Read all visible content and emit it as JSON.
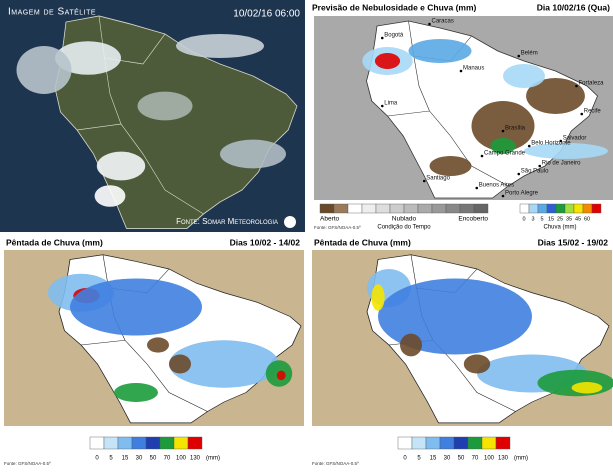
{
  "satellite": {
    "title": "Imagem de Satélite",
    "timestamp": "10/02/16 06:00",
    "source": "Fonte: Somar Meteorologia"
  },
  "forecast": {
    "title": "Previsão de Nebulosidade e Chuva (mm)",
    "date": "Dia 10/02/16 (Qua)",
    "cities": [
      "Bogotá",
      "Caracas",
      "Manaus",
      "Belém",
      "Fortaleza",
      "Lima",
      "Recife",
      "Salvador",
      "Brasília",
      "Belo Horizonte",
      "Rio de Janeiro",
      "São Paulo",
      "Campo Grande",
      "Santiago",
      "Buenos Aires",
      "Porto Alegre"
    ],
    "cloud_legend": {
      "labels": [
        "Aberto",
        "Nublado",
        "Encoberto"
      ],
      "caption": "Condição do Tempo",
      "colors": [
        "#6b4a2a",
        "#9a7a5a",
        "#ffffff",
        "#eeeeee",
        "#dddddd",
        "#cccccc",
        "#bbbbbb",
        "#aaaaaa",
        "#999999",
        "#888888",
        "#777777",
        "#666666"
      ]
    },
    "rain_legend": {
      "ticks": [
        "0",
        "3",
        "5",
        "15",
        "25",
        "35",
        "45",
        "60"
      ],
      "caption": "Chuva (mm)",
      "colors": [
        "#ffffff",
        "#a6d8f5",
        "#5aa9e6",
        "#2f5fd0",
        "#1c9b3c",
        "#9fe03a",
        "#f5e400",
        "#f58a00",
        "#e00000"
      ]
    },
    "source": "Fonte: GFS/NOAA-0.5º"
  },
  "pentads": [
    {
      "title": "Pêntada de Chuva (mm)",
      "dates": "Dias 10/02 - 14/02",
      "source": "Fonte: GFS/NOAA-0.5º"
    },
    {
      "title": "Pêntada de Chuva (mm)",
      "dates": "Dias 15/02 - 19/02",
      "source": "Fonte: GFS/NOAA-0.5º"
    }
  ],
  "pentad_legend": {
    "ticks": [
      "0",
      "5",
      "15",
      "30",
      "50",
      "70",
      "100",
      "130"
    ],
    "unit": "(mm)",
    "colors": [
      "#ffffff",
      "#c6e4f7",
      "#7fbdf0",
      "#3f7fe0",
      "#1f3fb0",
      "#1c9b3c",
      "#f5e400",
      "#e00000"
    ]
  }
}
